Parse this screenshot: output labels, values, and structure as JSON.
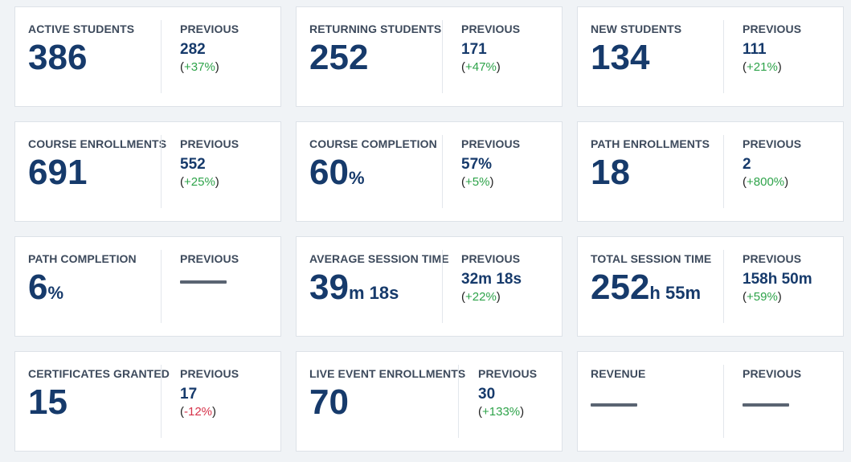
{
  "cards": [
    {
      "label": "ACTIVE STUDENTS",
      "value": "386",
      "prev_label": "PREVIOUS",
      "prev": "282",
      "change": "+37%"
    },
    {
      "label": "RETURNING STUDENTS",
      "value": "252",
      "prev_label": "PREVIOUS",
      "prev": "171",
      "change": "+47%"
    },
    {
      "label": "NEW STUDENTS",
      "value": "134",
      "prev_label": "PREVIOUS",
      "prev": "111",
      "change": "+21%"
    },
    {
      "label": "COURSE ENROLLMENTS",
      "value": "691",
      "prev_label": "PREVIOUS",
      "prev": "552",
      "change": "+25%"
    },
    {
      "label": "COURSE COMPLETION",
      "value": "60",
      "unit": "%",
      "prev_label": "PREVIOUS",
      "prev": "57%",
      "change": "+5%"
    },
    {
      "label": "PATH ENROLLMENTS",
      "value": "18",
      "prev_label": "PREVIOUS",
      "prev": "2",
      "change": "+800%"
    },
    {
      "label": "PATH COMPLETION",
      "value": "6",
      "unit": "%",
      "prev_label": "PREVIOUS"
    },
    {
      "label": "AVERAGE SESSION TIME",
      "value": "39",
      "unit1": "m",
      "value2": "18",
      "unit2": "s",
      "prev_label": "PREVIOUS",
      "prev_a": "32",
      "prev_u1": "m",
      "prev_b": "18",
      "prev_u2": "s",
      "change": "+22%"
    },
    {
      "label": "TOTAL SESSION TIME",
      "value": "252",
      "unit1": "h",
      "value2": "55",
      "unit2": "m",
      "prev_label": "PREVIOUS",
      "prev_a": "158",
      "prev_u1": "h",
      "prev_b": "50",
      "prev_u2": "m",
      "change": "+59%"
    },
    {
      "label": "CERTIFICATES GRANTED",
      "value": "15",
      "prev_label": "PREVIOUS",
      "prev": "17",
      "change": "-12%"
    },
    {
      "label": "LIVE EVENT ENROLLMENTS",
      "value": "70",
      "prev_label": "PREVIOUS",
      "prev": "30",
      "change": "+133%"
    },
    {
      "label": "REVENUE",
      "prev_label": "PREVIOUS"
    }
  ],
  "colors": {
    "positive": "#2ea34a",
    "negative": "#d6334a",
    "value": "#163a6b"
  }
}
